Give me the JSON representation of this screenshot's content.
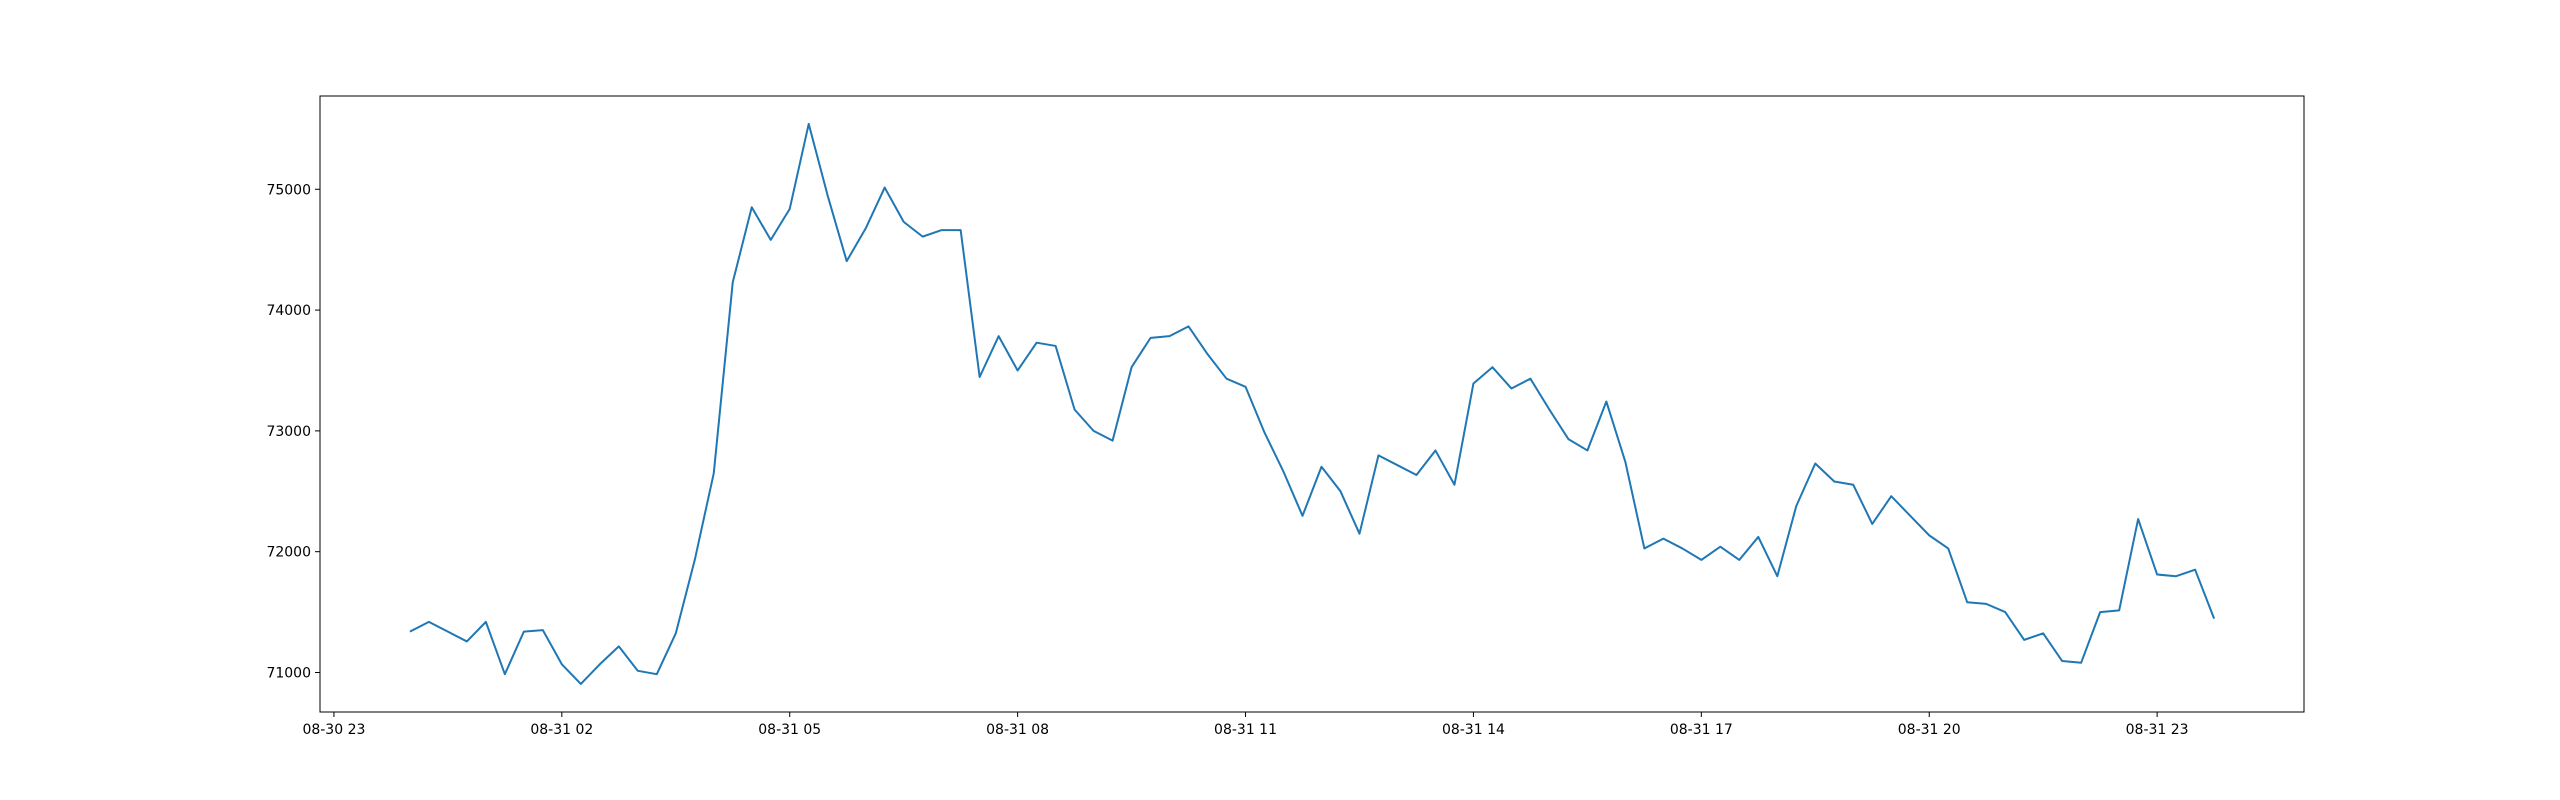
{
  "chart_data": {
    "type": "line",
    "x": [
      "08-31 00:00",
      "08-31 00:15",
      "08-31 00:30",
      "08-31 00:45",
      "08-31 01:00",
      "08-31 01:15",
      "08-31 01:30",
      "08-31 01:45",
      "08-31 02:00",
      "08-31 02:15",
      "08-31 02:30",
      "08-31 02:45",
      "08-31 03:00",
      "08-31 03:15",
      "08-31 03:30",
      "08-31 03:45",
      "08-31 04:00",
      "08-31 04:15",
      "08-31 04:30",
      "08-31 04:45",
      "08-31 05:00",
      "08-31 05:15",
      "08-31 05:30",
      "08-31 05:45",
      "08-31 06:00",
      "08-31 06:15",
      "08-31 06:30",
      "08-31 06:45",
      "08-31 07:00",
      "08-31 07:15",
      "08-31 07:30",
      "08-31 07:45",
      "08-31 08:00",
      "08-31 08:15",
      "08-31 08:30",
      "08-31 08:45",
      "08-31 09:00",
      "08-31 09:15",
      "08-31 09:30",
      "08-31 09:45",
      "08-31 10:00",
      "08-31 10:15",
      "08-31 10:30",
      "08-31 10:45",
      "08-31 11:00",
      "08-31 11:15",
      "08-31 11:30",
      "08-31 11:45",
      "08-31 12:00",
      "08-31 12:15",
      "08-31 12:30",
      "08-31 12:45",
      "08-31 13:00",
      "08-31 13:15",
      "08-31 13:30",
      "08-31 13:45",
      "08-31 14:00",
      "08-31 14:15",
      "08-31 14:30",
      "08-31 14:45",
      "08-31 15:00",
      "08-31 15:15",
      "08-31 15:30",
      "08-31 15:45",
      "08-31 16:00",
      "08-31 16:15",
      "08-31 16:30",
      "08-31 16:45",
      "08-31 17:00",
      "08-31 17:15",
      "08-31 17:30",
      "08-31 17:45",
      "08-31 18:00",
      "08-31 18:15",
      "08-31 18:30",
      "08-31 18:45",
      "08-31 19:00",
      "08-31 19:15",
      "08-31 19:30",
      "08-31 19:45",
      "08-31 20:00",
      "08-31 20:15",
      "08-31 20:30",
      "08-31 20:45",
      "08-31 21:00",
      "08-31 21:15",
      "08-31 21:30",
      "08-31 21:45",
      "08-31 22:00",
      "08-31 22:15",
      "08-31 22:30",
      "08-31 22:45",
      "08-31 23:00",
      "08-31 23:15",
      "08-31 23:30",
      "08-31 23:45"
    ],
    "series": [
      {
        "color": "#1f77b4",
        "values": [
          71338,
          71419,
          71338,
          71257,
          71419,
          70986,
          71338,
          71351,
          71068,
          70905,
          71068,
          71216,
          71014,
          70986,
          71324,
          71932,
          72649,
          74230,
          74851,
          74581,
          74838,
          75541,
          74946,
          74405,
          74676,
          75014,
          74730,
          74608,
          74662,
          74662,
          73446,
          73784,
          73500,
          73730,
          73703,
          73176,
          73000,
          72919,
          73527,
          73770,
          73784,
          73865,
          73635,
          73432,
          73365,
          72986,
          72662,
          72297,
          72703,
          72500,
          72149,
          72797,
          72716,
          72635,
          72838,
          72554,
          73392,
          73527,
          73351,
          73432,
          73176,
          72932,
          72838,
          73243,
          72743,
          72027,
          72108,
          72027,
          71932,
          72041,
          71932,
          72122,
          71797,
          72378,
          72730,
          72581,
          72554,
          72230,
          72459,
          72297,
          72135,
          72027,
          71581,
          71568,
          71500,
          71270,
          71324,
          71095,
          71081,
          71500,
          71514,
          72270,
          71811,
          71797,
          71851,
          71446
        ]
      }
    ],
    "xlim": [
      "08-30 22:49",
      "09-01 00:56"
    ],
    "xticks": [
      "08-30 23",
      "08-31 02",
      "08-31 05",
      "08-31 08",
      "08-31 11",
      "08-31 14",
      "08-31 17",
      "08-31 20",
      "08-31 23"
    ],
    "ylim": [
      70673,
      75772
    ],
    "yticks": [
      71000,
      72000,
      73000,
      74000,
      75000
    ]
  }
}
